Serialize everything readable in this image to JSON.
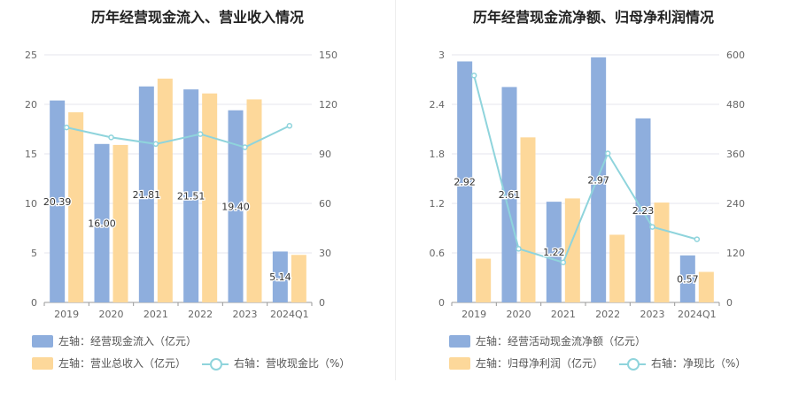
{
  "colors": {
    "blue": "#8eaedd",
    "orange": "#fdd89a",
    "line": "#8fd4dc",
    "grid": "#e6e6ee"
  },
  "chart_data": [
    {
      "type": "bar",
      "title": "历年经营现金流入、营业收入情况",
      "categories": [
        "2019",
        "2020",
        "2021",
        "2022",
        "2023",
        "2024Q1"
      ],
      "left_axis": {
        "min": 0,
        "max": 25,
        "ticks": [
          "0",
          "5",
          "10",
          "15",
          "20",
          "25"
        ]
      },
      "right_axis": {
        "min": 0,
        "max": 150,
        "ticks": [
          "0",
          "30",
          "60",
          "90",
          "120",
          "150"
        ]
      },
      "series": [
        {
          "name": "左轴：经营现金流入（亿元）",
          "kind": "bar",
          "axis": "left",
          "values": [
            20.39,
            16.0,
            21.81,
            21.51,
            19.4,
            5.14
          ],
          "labels": [
            "20.39",
            "16.00",
            "21.81",
            "21.51",
            "19.40",
            "5.14"
          ]
        },
        {
          "name": "左轴：营业总收入（亿元）",
          "kind": "bar",
          "axis": "left",
          "values": [
            19.2,
            15.9,
            22.6,
            21.1,
            20.5,
            4.8
          ]
        },
        {
          "name": "右轴：营收现金比（%）",
          "kind": "line",
          "axis": "right",
          "values": [
            106,
            100,
            96,
            102,
            94,
            107
          ]
        }
      ]
    },
    {
      "type": "bar",
      "title": "历年经营现金流净额、归母净利润情况",
      "categories": [
        "2019",
        "2020",
        "2021",
        "2022",
        "2023",
        "2024Q1"
      ],
      "left_axis": {
        "min": 0,
        "max": 3,
        "ticks": [
          "0",
          "0.6",
          "1.2",
          "1.8",
          "2.4",
          "3"
        ]
      },
      "right_axis": {
        "min": 0,
        "max": 600,
        "ticks": [
          "0",
          "120",
          "240",
          "360",
          "480",
          "600"
        ]
      },
      "series": [
        {
          "name": "左轴：经营活动现金流净额（亿元）",
          "kind": "bar",
          "axis": "left",
          "values": [
            2.92,
            2.61,
            1.22,
            2.97,
            2.23,
            0.57
          ],
          "labels": [
            "2.92",
            "2.61",
            "1.22",
            "2.97",
            "2.23",
            "0.57"
          ]
        },
        {
          "name": "左轴：归母净利润（亿元）",
          "kind": "bar",
          "axis": "left",
          "values": [
            0.53,
            2.0,
            1.26,
            0.82,
            1.21,
            0.37
          ]
        },
        {
          "name": "右轴：净现比（%）",
          "kind": "line",
          "axis": "right",
          "values": [
            550,
            130,
            97,
            361,
            183,
            153
          ]
        }
      ]
    }
  ]
}
